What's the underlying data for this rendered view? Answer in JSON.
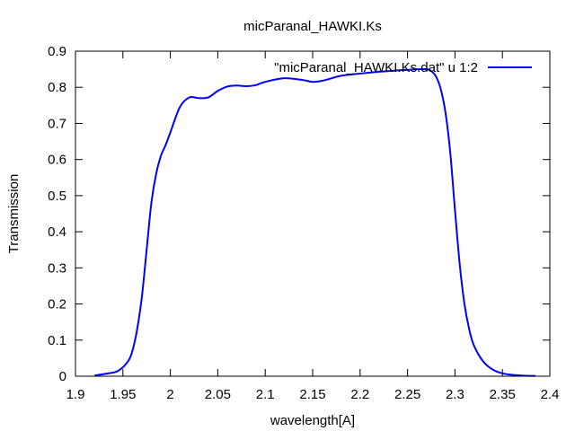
{
  "chart_data": {
    "type": "line",
    "title": "micParanal_HAWKI.Ks",
    "xlabel": "wavelength[A]",
    "ylabel": "Transmission",
    "xlim": [
      1.9,
      2.4
    ],
    "ylim": [
      0,
      0.9
    ],
    "xticks": [
      "1.9",
      "1.95",
      "2",
      "2.05",
      "2.1",
      "2.15",
      "2.2",
      "2.25",
      "2.3",
      "2.35",
      "2.4"
    ],
    "yticks": [
      "0",
      "0.1",
      "0.2",
      "0.3",
      "0.4",
      "0.5",
      "0.6",
      "0.7",
      "0.8",
      "0.9"
    ],
    "grid": false,
    "legend_position": "top-right",
    "series": [
      {
        "name": "\"micParanal_HAWKI.Ks.dat\" u 1:2",
        "color": "#0000ff",
        "x": [
          1.92,
          1.935,
          1.945,
          1.955,
          1.96,
          1.965,
          1.97,
          1.975,
          1.98,
          1.985,
          1.99,
          1.995,
          2.0,
          2.01,
          2.02,
          2.03,
          2.04,
          2.05,
          2.06,
          2.07,
          2.08,
          2.09,
          2.1,
          2.12,
          2.14,
          2.15,
          2.16,
          2.17,
          2.18,
          2.2,
          2.22,
          2.24,
          2.25,
          2.26,
          2.27,
          2.275,
          2.28,
          2.285,
          2.29,
          2.295,
          2.3,
          2.305,
          2.31,
          2.315,
          2.32,
          2.33,
          2.34,
          2.35,
          2.36,
          2.37,
          2.38,
          2.385
        ],
        "y": [
          0.002,
          0.008,
          0.015,
          0.04,
          0.07,
          0.13,
          0.22,
          0.35,
          0.48,
          0.56,
          0.61,
          0.64,
          0.675,
          0.745,
          0.772,
          0.77,
          0.772,
          0.79,
          0.802,
          0.805,
          0.803,
          0.806,
          0.815,
          0.825,
          0.82,
          0.815,
          0.818,
          0.825,
          0.832,
          0.838,
          0.843,
          0.847,
          0.848,
          0.85,
          0.85,
          0.845,
          0.83,
          0.795,
          0.73,
          0.62,
          0.46,
          0.31,
          0.2,
          0.13,
          0.085,
          0.04,
          0.018,
          0.008,
          0.004,
          0.002,
          0.001,
          0.001
        ]
      }
    ]
  }
}
